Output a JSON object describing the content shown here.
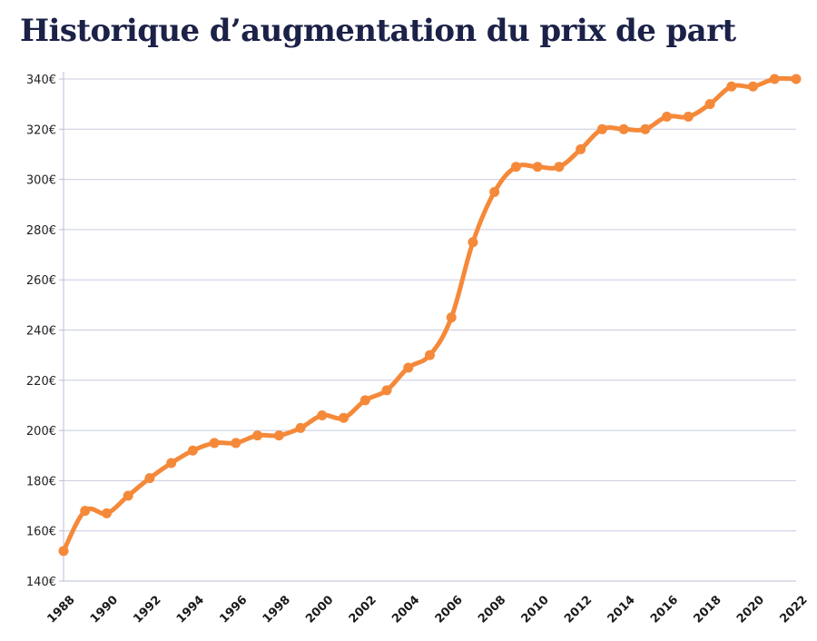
{
  "chart_data": {
    "type": "line",
    "title": "Historique d’augmentation du prix de part",
    "xlabel": "",
    "ylabel": "",
    "xlim": [
      1988,
      2022
    ],
    "ylim": [
      140,
      340
    ],
    "y_ticks": [
      140,
      160,
      180,
      200,
      220,
      240,
      260,
      280,
      300,
      320,
      340
    ],
    "y_tick_labels": [
      "140€",
      "160€",
      "180€",
      "200€",
      "220€",
      "240€",
      "260€",
      "280€",
      "300€",
      "320€",
      "340€"
    ],
    "x_ticks": [
      1988,
      1990,
      1992,
      1994,
      1996,
      1998,
      2000,
      2002,
      2004,
      2006,
      2008,
      2010,
      2012,
      2014,
      2016,
      2018,
      2020,
      2022
    ],
    "x_tick_labels": [
      "1988",
      "1990",
      "1992",
      "1994",
      "1996",
      "1998",
      "2000",
      "2002",
      "2004",
      "2006",
      "2008",
      "2010",
      "2012",
      "2014",
      "2016",
      "2018",
      "2020",
      "2022"
    ],
    "grid": true,
    "legend": "none",
    "series": [
      {
        "color": "#f5893a",
        "x": [
          1988,
          1989,
          1990,
          1991,
          1992,
          1993,
          1994,
          1995,
          1996,
          1997,
          1998,
          1999,
          2000,
          2001,
          2002,
          2003,
          2004,
          2005,
          2006,
          2007,
          2008,
          2009,
          2010,
          2011,
          2012,
          2013,
          2014,
          2015,
          2016,
          2017,
          2018,
          2019,
          2020,
          2021,
          2022
        ],
        "y": [
          152,
          168,
          167,
          174,
          181,
          187,
          192,
          195,
          195,
          198,
          198,
          201,
          206,
          205,
          212,
          216,
          225,
          230,
          245,
          275,
          295,
          305,
          305,
          305,
          312,
          320,
          320,
          320,
          325,
          325,
          330,
          337,
          337,
          340,
          340
        ]
      }
    ],
    "colors": {
      "line": "#f5893a",
      "grid": "#c8cce0",
      "axis": "#b9bdd6",
      "title": "#1b2147"
    }
  }
}
